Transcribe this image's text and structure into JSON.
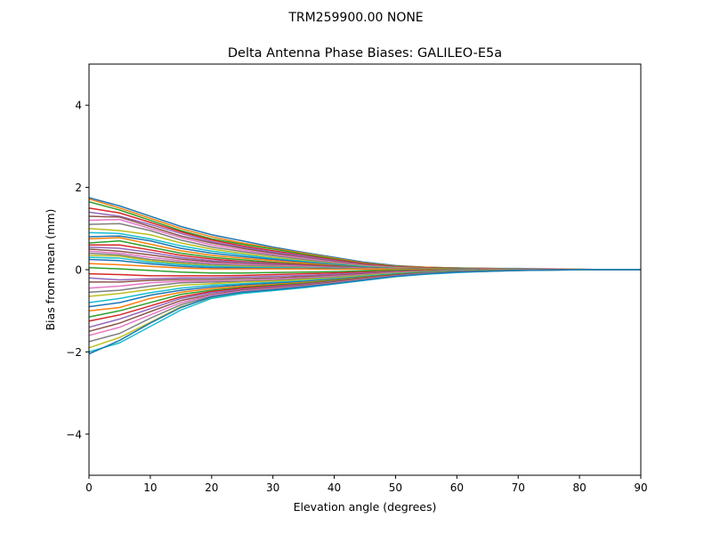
{
  "figure": {
    "suptitle": "TRM259900.00    NONE"
  },
  "chart_data": {
    "type": "line",
    "title": "Delta Antenna Phase Biases: GALILEO-E5a",
    "xlabel": "Elevation angle (degrees)",
    "ylabel": "Bias from mean (mm)",
    "xlim": [
      0,
      90
    ],
    "ylim": [
      -5,
      5
    ],
    "xticks": [
      0,
      10,
      20,
      30,
      40,
      50,
      60,
      70,
      80,
      90
    ],
    "yticks": [
      -4,
      -2,
      0,
      2,
      4
    ],
    "ytick_labels": [
      "−4",
      "−2",
      "0",
      "2",
      "4"
    ],
    "grid": false,
    "legend": "none",
    "x": [
      0,
      5,
      10,
      15,
      20,
      25,
      30,
      35,
      40,
      45,
      50,
      55,
      60,
      65,
      70,
      75,
      80,
      85,
      90
    ],
    "colors": [
      "#1f77b4",
      "#ff7f0e",
      "#2ca02c",
      "#d62728",
      "#9467bd",
      "#8c564b",
      "#e377c2",
      "#7f7f7f",
      "#bcbd22",
      "#17becf"
    ],
    "series": [
      {
        "values": [
          1.75,
          1.55,
          1.3,
          1.05,
          0.85,
          0.7,
          0.55,
          0.42,
          0.3,
          0.18,
          0.1,
          0.06,
          0.04,
          0.03,
          0.03,
          0.02,
          0.01,
          0.0,
          0.0
        ]
      },
      {
        "values": [
          1.72,
          1.5,
          1.25,
          1.0,
          0.8,
          0.65,
          0.52,
          0.4,
          0.28,
          0.16,
          0.09,
          0.06,
          0.04,
          0.03,
          0.02,
          0.02,
          0.01,
          0.0,
          0.0
        ]
      },
      {
        "values": [
          1.65,
          1.45,
          1.2,
          0.95,
          0.75,
          0.62,
          0.5,
          0.38,
          0.26,
          0.15,
          0.08,
          0.05,
          0.04,
          0.03,
          0.02,
          0.01,
          0.0,
          0.0,
          0.0
        ]
      },
      {
        "values": [
          1.5,
          1.38,
          1.15,
          0.92,
          0.72,
          0.58,
          0.46,
          0.35,
          0.24,
          0.14,
          0.07,
          0.05,
          0.03,
          0.03,
          0.02,
          0.01,
          0.0,
          0.0,
          0.0
        ]
      },
      {
        "values": [
          1.4,
          1.3,
          1.1,
          0.88,
          0.68,
          0.55,
          0.43,
          0.33,
          0.22,
          0.12,
          0.06,
          0.04,
          0.03,
          0.02,
          0.02,
          0.01,
          0.0,
          0.0,
          0.0
        ]
      },
      {
        "values": [
          1.3,
          1.28,
          1.05,
          0.82,
          0.65,
          0.52,
          0.4,
          0.3,
          0.2,
          0.11,
          0.05,
          0.04,
          0.03,
          0.02,
          0.01,
          0.01,
          0.0,
          0.0,
          0.0
        ]
      },
      {
        "values": [
          1.2,
          1.22,
          1.0,
          0.78,
          0.6,
          0.48,
          0.37,
          0.28,
          0.18,
          0.1,
          0.05,
          0.03,
          0.02,
          0.02,
          0.01,
          0.01,
          0.0,
          0.0,
          0.0
        ]
      },
      {
        "values": [
          1.1,
          1.12,
          0.95,
          0.72,
          0.55,
          0.44,
          0.34,
          0.25,
          0.16,
          0.09,
          0.04,
          0.03,
          0.02,
          0.02,
          0.01,
          0.0,
          0.0,
          0.0,
          0.0
        ]
      },
      {
        "values": [
          1.0,
          0.95,
          0.85,
          0.65,
          0.5,
          0.4,
          0.3,
          0.22,
          0.14,
          0.08,
          0.04,
          0.03,
          0.02,
          0.01,
          0.01,
          0.0,
          0.0,
          0.0,
          0.0
        ]
      },
      {
        "values": [
          0.9,
          0.88,
          0.75,
          0.58,
          0.45,
          0.36,
          0.27,
          0.2,
          0.13,
          0.07,
          0.03,
          0.02,
          0.02,
          0.01,
          0.01,
          0.0,
          0.0,
          0.0,
          0.0
        ]
      },
      {
        "values": [
          0.8,
          0.82,
          0.7,
          0.52,
          0.4,
          0.32,
          0.25,
          0.18,
          0.12,
          0.06,
          0.03,
          0.02,
          0.01,
          0.01,
          0.0,
          0.0,
          0.0,
          0.0,
          0.0
        ]
      },
      {
        "values": [
          0.75,
          0.78,
          0.62,
          0.46,
          0.35,
          0.28,
          0.22,
          0.16,
          0.1,
          0.05,
          0.02,
          0.02,
          0.01,
          0.01,
          0.0,
          0.0,
          0.0,
          0.0,
          0.0
        ]
      },
      {
        "values": [
          0.65,
          0.7,
          0.55,
          0.4,
          0.3,
          0.24,
          0.18,
          0.13,
          0.09,
          0.05,
          0.02,
          0.01,
          0.01,
          0.0,
          0.0,
          0.0,
          0.0,
          0.0,
          0.0
        ]
      },
      {
        "values": [
          0.6,
          0.6,
          0.48,
          0.35,
          0.26,
          0.2,
          0.16,
          0.12,
          0.08,
          0.04,
          0.02,
          0.01,
          0.01,
          0.0,
          0.0,
          0.0,
          0.0,
          0.0,
          0.0
        ]
      },
      {
        "values": [
          0.55,
          0.52,
          0.42,
          0.3,
          0.22,
          0.18,
          0.14,
          0.1,
          0.07,
          0.04,
          0.02,
          0.01,
          0.0,
          0.0,
          0.0,
          0.0,
          0.0,
          0.0,
          0.0
        ]
      },
      {
        "values": [
          0.5,
          0.45,
          0.36,
          0.26,
          0.19,
          0.15,
          0.12,
          0.09,
          0.06,
          0.03,
          0.01,
          0.01,
          0.0,
          0.0,
          0.0,
          0.0,
          0.0,
          0.0,
          0.0
        ]
      },
      {
        "values": [
          0.45,
          0.4,
          0.3,
          0.22,
          0.16,
          0.13,
          0.1,
          0.08,
          0.05,
          0.03,
          0.01,
          0.0,
          0.0,
          0.0,
          0.0,
          0.0,
          0.0,
          0.0,
          0.0
        ]
      },
      {
        "values": [
          0.4,
          0.36,
          0.25,
          0.18,
          0.13,
          0.1,
          0.08,
          0.06,
          0.04,
          0.02,
          0.01,
          0.0,
          0.0,
          0.0,
          0.0,
          0.0,
          0.0,
          0.0,
          0.0
        ]
      },
      {
        "values": [
          0.35,
          0.33,
          0.22,
          0.15,
          0.1,
          0.08,
          0.06,
          0.05,
          0.03,
          0.02,
          0.01,
          0.0,
          0.0,
          0.0,
          0.0,
          0.0,
          0.0,
          0.0,
          0.0
        ]
      },
      {
        "values": [
          0.3,
          0.28,
          0.18,
          0.12,
          0.08,
          0.06,
          0.05,
          0.04,
          0.03,
          0.01,
          0.0,
          0.0,
          0.0,
          0.0,
          0.0,
          0.0,
          0.0,
          0.0,
          0.0
        ]
      },
      {
        "values": [
          0.25,
          0.22,
          0.14,
          0.08,
          0.05,
          0.04,
          0.03,
          0.03,
          0.02,
          0.01,
          0.0,
          0.0,
          0.0,
          0.0,
          0.0,
          0.0,
          0.0,
          0.0,
          0.0
        ]
      },
      {
        "values": [
          0.15,
          0.12,
          0.08,
          0.04,
          0.02,
          0.02,
          0.02,
          0.02,
          0.01,
          0.01,
          0.0,
          0.0,
          0.0,
          0.0,
          0.0,
          0.0,
          0.0,
          0.0,
          0.0
        ]
      },
      {
        "values": [
          0.05,
          0.02,
          -0.02,
          -0.06,
          -0.08,
          -0.08,
          -0.07,
          -0.06,
          -0.05,
          -0.03,
          -0.02,
          -0.01,
          0.0,
          0.0,
          0.0,
          0.0,
          0.0,
          0.0,
          0.0
        ]
      },
      {
        "values": [
          -0.1,
          -0.12,
          -0.15,
          -0.15,
          -0.15,
          -0.14,
          -0.12,
          -0.1,
          -0.08,
          -0.06,
          -0.04,
          -0.02,
          -0.01,
          0.0,
          0.0,
          0.0,
          0.0,
          0.0,
          0.0
        ]
      },
      {
        "values": [
          -0.2,
          -0.25,
          -0.22,
          -0.2,
          -0.2,
          -0.18,
          -0.16,
          -0.14,
          -0.11,
          -0.08,
          -0.05,
          -0.03,
          -0.01,
          0.0,
          0.0,
          0.0,
          0.0,
          0.0,
          0.0
        ]
      },
      {
        "values": [
          -0.3,
          -0.3,
          -0.26,
          -0.24,
          -0.24,
          -0.22,
          -0.2,
          -0.17,
          -0.14,
          -0.1,
          -0.06,
          -0.03,
          -0.02,
          -0.01,
          0.0,
          0.0,
          0.0,
          0.0,
          0.0
        ]
      },
      {
        "values": [
          -0.45,
          -0.4,
          -0.32,
          -0.28,
          -0.28,
          -0.26,
          -0.23,
          -0.2,
          -0.16,
          -0.12,
          -0.07,
          -0.04,
          -0.02,
          -0.01,
          0.0,
          0.0,
          0.0,
          0.0,
          0.0
        ]
      },
      {
        "values": [
          -0.55,
          -0.5,
          -0.4,
          -0.32,
          -0.3,
          -0.28,
          -0.26,
          -0.22,
          -0.18,
          -0.13,
          -0.08,
          -0.05,
          -0.03,
          -0.01,
          0.0,
          0.0,
          0.0,
          0.0,
          0.0
        ]
      },
      {
        "values": [
          -0.65,
          -0.58,
          -0.48,
          -0.38,
          -0.34,
          -0.3,
          -0.28,
          -0.24,
          -0.2,
          -0.14,
          -0.09,
          -0.05,
          -0.03,
          -0.01,
          0.0,
          0.0,
          0.0,
          0.0,
          0.0
        ]
      },
      {
        "values": [
          -0.8,
          -0.7,
          -0.56,
          -0.45,
          -0.38,
          -0.34,
          -0.31,
          -0.27,
          -0.22,
          -0.16,
          -0.1,
          -0.06,
          -0.03,
          -0.02,
          -0.01,
          0.0,
          0.0,
          0.0,
          0.0
        ]
      },
      {
        "values": [
          -0.9,
          -0.8,
          -0.62,
          -0.5,
          -0.42,
          -0.37,
          -0.33,
          -0.29,
          -0.23,
          -0.17,
          -0.11,
          -0.06,
          -0.04,
          -0.02,
          -0.01,
          0.0,
          0.0,
          0.0,
          0.0
        ]
      },
      {
        "values": [
          -1.0,
          -0.92,
          -0.7,
          -0.55,
          -0.46,
          -0.4,
          -0.36,
          -0.31,
          -0.25,
          -0.18,
          -0.12,
          -0.07,
          -0.04,
          -0.02,
          -0.01,
          0.0,
          0.0,
          0.0,
          0.0
        ]
      },
      {
        "values": [
          -1.15,
          -1.0,
          -0.8,
          -0.6,
          -0.5,
          -0.43,
          -0.38,
          -0.33,
          -0.26,
          -0.19,
          -0.12,
          -0.07,
          -0.04,
          -0.02,
          -0.01,
          0.0,
          0.0,
          0.0,
          0.0
        ]
      },
      {
        "values": [
          -1.25,
          -1.1,
          -0.88,
          -0.66,
          -0.53,
          -0.45,
          -0.4,
          -0.35,
          -0.28,
          -0.2,
          -0.13,
          -0.08,
          -0.05,
          -0.03,
          -0.01,
          0.0,
          0.0,
          0.0,
          0.0
        ]
      },
      {
        "values": [
          -1.4,
          -1.2,
          -0.95,
          -0.7,
          -0.56,
          -0.48,
          -0.42,
          -0.36,
          -0.29,
          -0.21,
          -0.14,
          -0.08,
          -0.05,
          -0.03,
          -0.01,
          0.0,
          0.0,
          0.0,
          0.0
        ]
      },
      {
        "values": [
          -1.5,
          -1.3,
          -1.02,
          -0.75,
          -0.6,
          -0.5,
          -0.44,
          -0.38,
          -0.3,
          -0.22,
          -0.14,
          -0.09,
          -0.05,
          -0.03,
          -0.02,
          0.0,
          0.0,
          0.0,
          0.0
        ]
      },
      {
        "values": [
          -1.6,
          -1.4,
          -1.1,
          -0.8,
          -0.62,
          -0.52,
          -0.46,
          -0.4,
          -0.32,
          -0.23,
          -0.15,
          -0.09,
          -0.06,
          -0.03,
          -0.02,
          -0.01,
          0.0,
          0.0,
          0.0
        ]
      },
      {
        "values": [
          -1.75,
          -1.55,
          -1.18,
          -0.85,
          -0.65,
          -0.54,
          -0.48,
          -0.41,
          -0.33,
          -0.24,
          -0.16,
          -0.1,
          -0.06,
          -0.03,
          -0.02,
          -0.01,
          0.0,
          0.0,
          0.0
        ]
      },
      {
        "values": [
          -1.9,
          -1.65,
          -1.28,
          -0.9,
          -0.68,
          -0.56,
          -0.5,
          -0.43,
          -0.34,
          -0.25,
          -0.17,
          -0.1,
          -0.06,
          -0.04,
          -0.02,
          -0.01,
          0.0,
          0.0,
          0.0
        ]
      },
      {
        "values": [
          -2.0,
          -1.78,
          -1.38,
          -0.98,
          -0.7,
          -0.58,
          -0.51,
          -0.44,
          -0.35,
          -0.26,
          -0.17,
          -0.11,
          -0.07,
          -0.04,
          -0.02,
          -0.01,
          0.0,
          0.0,
          0.0
        ]
      },
      {
        "values": [
          -2.05,
          -1.72,
          -1.3,
          -0.92,
          -0.66,
          -0.55,
          -0.49,
          -0.42,
          -0.34,
          -0.25,
          -0.16,
          -0.1,
          -0.06,
          -0.04,
          -0.02,
          -0.01,
          0.0,
          0.0,
          0.0
        ]
      }
    ]
  }
}
